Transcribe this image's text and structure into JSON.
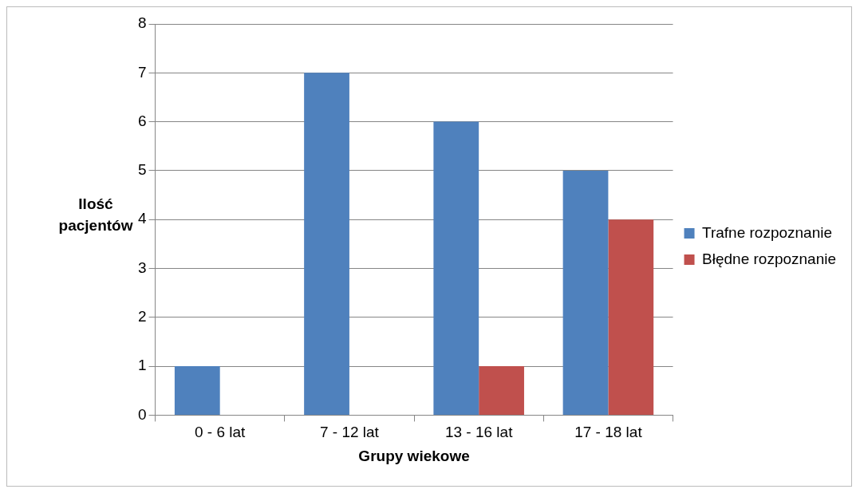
{
  "chart_data": {
    "type": "bar",
    "xlabel": "Grupy wiekowe",
    "ylabel": "Ilość pacjentów",
    "categories": [
      "0 - 6 lat",
      "7 - 12 lat",
      "13 - 16 lat",
      "17 - 18 lat"
    ],
    "series": [
      {
        "name": "Trafne rozpoznanie",
        "color": "#4f81bd",
        "values": [
          1,
          7,
          6,
          5
        ]
      },
      {
        "name": "Błędne rozpoznanie",
        "color": "#c0504d",
        "values": [
          0,
          0,
          1,
          4
        ]
      }
    ],
    "ylim": [
      0,
      8
    ],
    "yticks": [
      0,
      1,
      2,
      3,
      4,
      5,
      6,
      7,
      8
    ],
    "grid": "y",
    "legend": "right"
  }
}
